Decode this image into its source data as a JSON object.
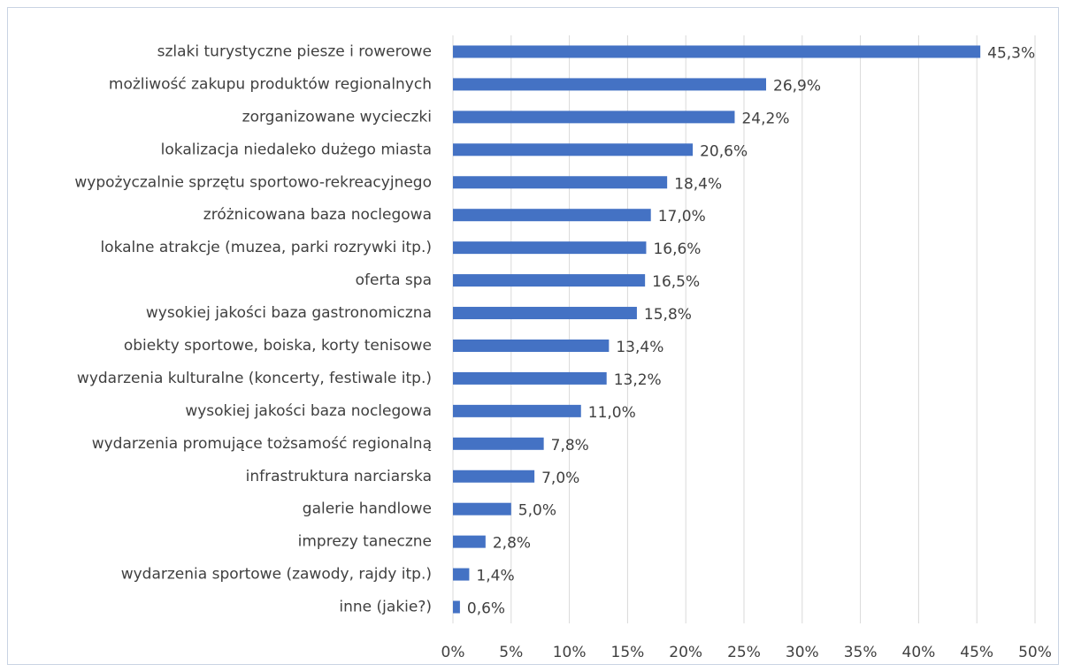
{
  "chart_data": {
    "type": "barh",
    "color": "#4472c4",
    "grid": true,
    "categories": [
      "szlaki turystyczne piesze i rowerowe",
      "możliwość zakupu produktów regionalnych",
      "zorganizowane wycieczki",
      "lokalizacja niedaleko dużego miasta",
      "wypożyczalnie sprzętu sportowo-rekreacyjnego",
      "zróżnicowana baza noclegowa",
      "lokalne atrakcje (muzea, parki rozrywki itp.)",
      "oferta spa",
      "wysokiej jakości baza gastronomiczna",
      "obiekty sportowe, boiska, korty tenisowe",
      "wydarzenia kulturalne (koncerty, festiwale itp.)",
      "wysokiej jakości baza noclegowa",
      "wydarzenia promujące tożsamość regionalną",
      "infrastruktura narciarska",
      "galerie handlowe",
      "imprezy taneczne",
      "wydarzenia sportowe (zawody, rajdy itp.)",
      "inne (jakie?)"
    ],
    "values": [
      45.3,
      26.9,
      24.2,
      20.6,
      18.4,
      17.0,
      16.6,
      16.5,
      15.8,
      13.4,
      13.2,
      11.0,
      7.8,
      7.0,
      5.0,
      2.8,
      1.4,
      0.6
    ],
    "value_labels": [
      "45,3%",
      "26,9%",
      "24,2%",
      "20,6%",
      "18,4%",
      "17,0%",
      "16,6%",
      "16,5%",
      "15,8%",
      "13,4%",
      "13,2%",
      "11,0%",
      "7,8%",
      "7,0%",
      "5,0%",
      "2,8%",
      "1,4%",
      "0,6%"
    ],
    "xlim": [
      0,
      50
    ],
    "xticks": [
      {
        "value": 0,
        "label": "0%"
      },
      {
        "value": 5,
        "label": "5%"
      },
      {
        "value": 10,
        "label": "10%"
      },
      {
        "value": 15,
        "label": "15%"
      },
      {
        "value": 20,
        "label": "20%"
      },
      {
        "value": 25,
        "label": "25%"
      },
      {
        "value": 30,
        "label": "30%"
      },
      {
        "value": 35,
        "label": "35%"
      },
      {
        "value": 40,
        "label": "40%"
      },
      {
        "value": 45,
        "label": "45%"
      },
      {
        "value": 50,
        "label": "50%"
      }
    ]
  }
}
